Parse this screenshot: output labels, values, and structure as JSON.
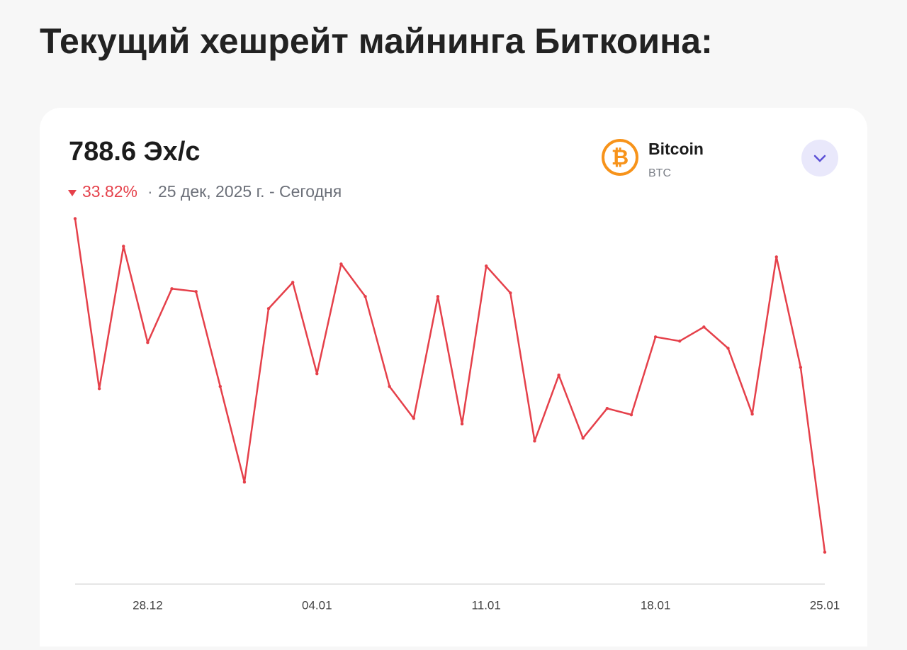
{
  "heading": "Текущий хешрейт майнинга Биткоина:",
  "card": {
    "current": "788.6 Эх/с",
    "change": "33.82%",
    "period": "25 дек, 2025 г. - Сегодня",
    "coin_name": "Bitcoin",
    "coin_ticker": "BTC"
  },
  "chart_data": {
    "type": "line",
    "x": [
      "25.12",
      "26.12",
      "27.12",
      "28.12",
      "29.12",
      "30.12",
      "31.12",
      "01.01",
      "02.01",
      "03.01",
      "04.01",
      "05.01",
      "06.01",
      "07.01",
      "08.01",
      "09.01",
      "10.01",
      "11.01",
      "12.01",
      "13.01",
      "14.01",
      "15.01",
      "16.01",
      "17.01",
      "18.01",
      "19.01",
      "20.01",
      "21.01",
      "22.01",
      "23.01",
      "24.01",
      "25.01"
    ],
    "series": [
      {
        "color": "#e5404a",
        "values": [
          1191.6,
          986.2,
          1158.2,
          1041.9,
          1106.9,
          1103.5,
          988.8,
          873.3,
          1082.9,
          1114.6,
          1004.2,
          1136.8,
          1097.5,
          988.8,
          950.3,
          1097.5,
          943.5,
          1134.3,
          1101.8,
          922.9,
          1002.5,
          926.4,
          962.3,
          954.6,
          1048.7,
          1043.6,
          1060.7,
          1035.0,
          955.4,
          1145.4,
          1011.9,
          788.6
        ]
      }
    ],
    "xticks": [
      "28.12",
      "04.01",
      "11.01",
      "18.01",
      "25.01"
    ],
    "ylim": [
      750,
      1192
    ]
  }
}
